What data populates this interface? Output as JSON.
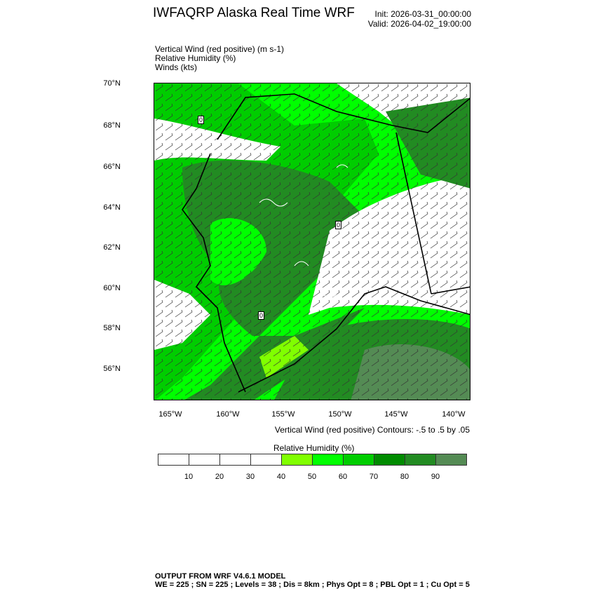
{
  "title": "IWFAQRP Alaska Real Time WRF",
  "init": "Init: 2026-03-31_00:00:00",
  "valid": "Valid: 2026-04-02_19:00:00",
  "fields": [
    "Vertical Wind (red positive)   (m s-1)",
    "Relative Humidity   (%)",
    "Winds   (kts)"
  ],
  "lat_labels": [
    "70°N",
    "68°N",
    "66°N",
    "64°N",
    "62°N",
    "60°N",
    "58°N",
    "56°N"
  ],
  "lon_labels": [
    "165°W",
    "160°W",
    "155°W",
    "150°W",
    "145°W",
    "140°W"
  ],
  "vertical_wind_note": "Vertical Wind (red positive) Contours: -.5 to .5 by .05",
  "colorbar": {
    "title": "Relative Humidity  (%)",
    "labels": [
      "10",
      "20",
      "30",
      "40",
      "50",
      "60",
      "70",
      "80",
      "90"
    ],
    "colors": [
      "#ffffff",
      "#ffffff",
      "#ffffff",
      "#ffffff",
      "#80ff00",
      "#00ff00",
      "#00cd00",
      "#008b00",
      "#228b22",
      "#548b54"
    ]
  },
  "contour_label": "0",
  "footer": [
    "OUTPUT FROM WRF V4.6.1 MODEL",
    "WE = 225 ; SN = 225 ; Levels = 38 ; Dis = 8km ; Phys Opt = 8 ; PBL Opt = 1 ; Cu Opt = 5"
  ]
}
